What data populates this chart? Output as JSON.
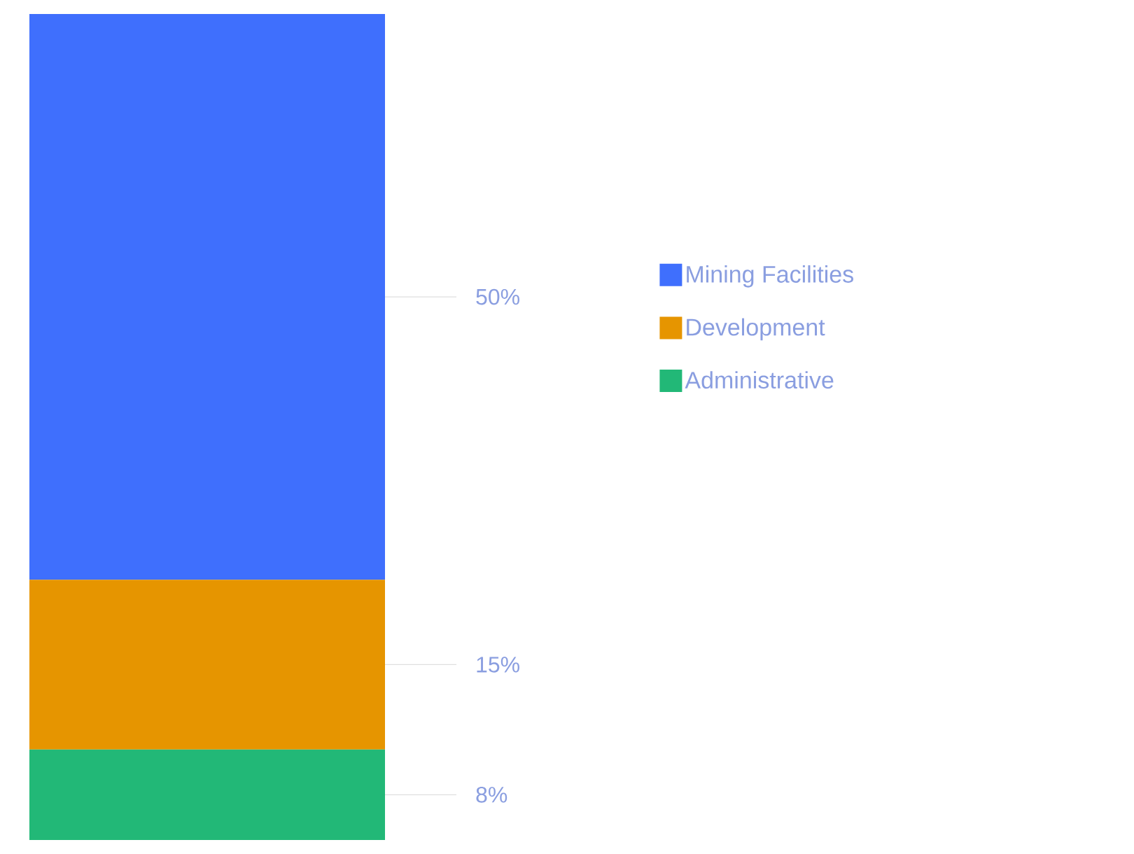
{
  "chart_data": {
    "type": "bar",
    "stacked": true,
    "categories": [
      null
    ],
    "legend": "right",
    "series": [
      {
        "name": "Administrative",
        "color": "#22b877",
        "values": [
          8
        ],
        "value_labels": [
          "8%"
        ]
      },
      {
        "name": "Development",
        "color": "#e69500",
        "values": [
          15
        ],
        "value_labels": [
          "15%"
        ]
      },
      {
        "name": "Mining Facilities",
        "color": "#3f6ffd",
        "values": [
          50
        ],
        "value_labels": [
          "50%"
        ]
      }
    ]
  }
}
